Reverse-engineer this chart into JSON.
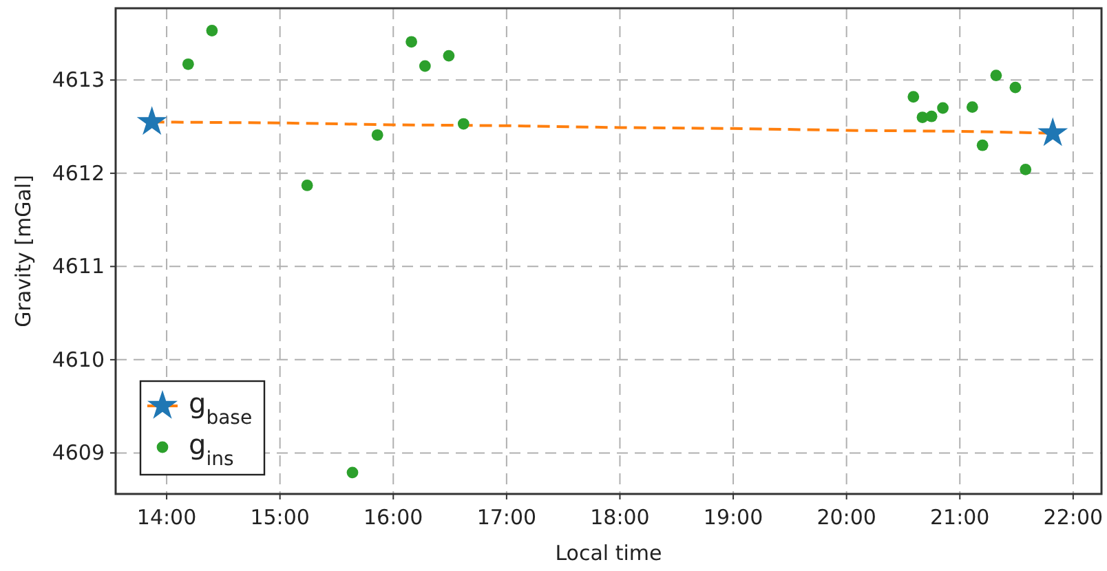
{
  "chart_data": {
    "type": "scatter",
    "xlabel": "Local time",
    "ylabel": "Gravity [mGal]",
    "xlim": [
      13.55,
      22.25
    ],
    "ylim": [
      4608.56,
      4613.77
    ],
    "xticks": [
      {
        "value": 14,
        "label": "14:00"
      },
      {
        "value": 15,
        "label": "15:00"
      },
      {
        "value": 16,
        "label": "16:00"
      },
      {
        "value": 17,
        "label": "17:00"
      },
      {
        "value": 18,
        "label": "18:00"
      },
      {
        "value": 19,
        "label": "19:00"
      },
      {
        "value": 20,
        "label": "20:00"
      },
      {
        "value": 21,
        "label": "21:00"
      },
      {
        "value": 22,
        "label": "22:00"
      }
    ],
    "yticks": [
      4609,
      4610,
      4611,
      4612,
      4613
    ],
    "grid": true,
    "legend": "bottom left",
    "series": [
      {
        "type": "line",
        "color": "#ff7f0e",
        "line_style": "dashed",
        "marker": "none",
        "x": [
          13.87,
          15.0,
          16.0,
          17.0,
          18.0,
          19.0,
          20.0,
          21.0,
          21.82
        ],
        "values": [
          4612.55,
          4612.54,
          4612.52,
          4612.51,
          4612.49,
          4612.48,
          4612.46,
          4612.45,
          4612.43
        ]
      },
      {
        "name": "g$_{base}$",
        "color": "#1f77b4",
        "marker": "star",
        "x": [
          13.87,
          21.82
        ],
        "values": [
          4612.55,
          4612.43
        ]
      },
      {
        "name": "g$_{ins}$",
        "color": "#2ca02c",
        "marker": "circle",
        "x": [
          14.19,
          14.4,
          15.24,
          15.64,
          15.86,
          16.16,
          16.28,
          16.49,
          16.62,
          20.59,
          20.67,
          20.75,
          20.85,
          21.11,
          21.2,
          21.32,
          21.49,
          21.58
        ],
        "values": [
          4613.17,
          4613.53,
          4611.87,
          4608.79,
          4612.41,
          4613.41,
          4613.15,
          4613.26,
          4612.53,
          4612.82,
          4612.6,
          4612.61,
          4612.7,
          4612.71,
          4612.3,
          4613.05,
          4612.92,
          4612.04
        ]
      }
    ]
  }
}
